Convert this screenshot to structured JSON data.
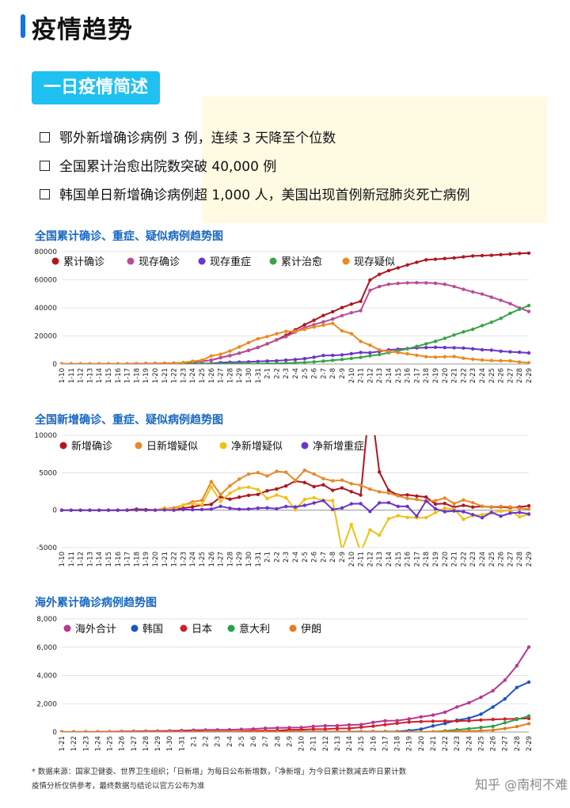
{
  "page": {
    "title": "疫情趋势",
    "section_tag": "一日疫情简述",
    "bullets": [
      "鄂外新增确诊病例 3 例，连续 3 天降至个位数",
      "全国累计治愈出院数突破 40,000 例",
      "韩国单日新增确诊病例超 1,000 人，美国出现首例新冠肺炎死亡病例"
    ],
    "footnote_line1": "* 数据来源：国家卫健委、世界卫生组织；「日新增」为每日公布新增数，「净新增」为今日累计数减去昨日累计数",
    "footnote_line2": "疫情分析仅供参考，最终数据与结论以官方公布为准",
    "watermark": "知乎 @南柯不难"
  },
  "chart_data": [
    {
      "type": "line",
      "title": "全国累计确诊、重症、疑似病例趋势图",
      "ylim": [
        0,
        80000
      ],
      "yticks": [
        "0",
        "20000",
        "40000",
        "60000",
        "80000"
      ],
      "x": [
        "1-10",
        "1-11",
        "1-12",
        "1-13",
        "1-14",
        "1-15",
        "1-16",
        "1-17",
        "1-18",
        "1-19",
        "1-20",
        "1-21",
        "1-22",
        "1-23",
        "1-24",
        "1-25",
        "1-26",
        "1-27",
        "1-28",
        "1-29",
        "1-30",
        "1-31",
        "2-1",
        "2-2",
        "2-3",
        "2-4",
        "2-5",
        "2-6",
        "2-7",
        "2-8",
        "2-9",
        "2-10",
        "2-11",
        "2-12",
        "2-13",
        "2-14",
        "2-15",
        "2-16",
        "2-17",
        "2-18",
        "2-19",
        "2-20",
        "2-21",
        "2-22",
        "2-23",
        "2-24",
        "2-25",
        "2-26",
        "2-27",
        "2-28",
        "2-29"
      ],
      "legend_position": "top",
      "series": [
        {
          "name": "累计确诊",
          "color": "#b0171f",
          "values": [
            41,
            41,
            41,
            41,
            41,
            41,
            45,
            62,
            198,
            275,
            291,
            440,
            571,
            830,
            1287,
            1975,
            2744,
            4515,
            5974,
            7711,
            9692,
            11791,
            14380,
            17205,
            20438,
            24324,
            28018,
            31161,
            34546,
            37198,
            40171,
            42638,
            44653,
            59804,
            63851,
            66492,
            68500,
            70548,
            72436,
            74185,
            74576,
            75077,
            75550,
            76286,
            76959,
            77209,
            77442,
            77876,
            78263,
            78691,
            78989
          ]
        },
        {
          "name": "现存确诊",
          "color": "#b84d95",
          "values": [
            41,
            41,
            41,
            41,
            41,
            41,
            45,
            62,
            198,
            275,
            291,
            440,
            571,
            830,
            1287,
            1975,
            2744,
            4515,
            5974,
            7711,
            9692,
            11791,
            14380,
            17205,
            19500,
            22800,
            26000,
            28000,
            30000,
            32000,
            34500,
            36500,
            38000,
            52500,
            55200,
            56800,
            57400,
            57800,
            57900,
            57800,
            57500,
            56800,
            55200,
            53200,
            51400,
            49800,
            47600,
            45400,
            43000,
            39900,
            37400
          ]
        },
        {
          "name": "现存重症",
          "color": "#6a35c9",
          "values": [
            0,
            0,
            0,
            0,
            0,
            0,
            0,
            0,
            35,
            51,
            63,
            95,
            95,
            177,
            237,
            324,
            461,
            976,
            1239,
            1370,
            1527,
            1795,
            2110,
            2296,
            2788,
            3219,
            3859,
            4821,
            6101,
            6188,
            6484,
            7333,
            8204,
            8030,
            9000,
            10000,
            10500,
            11000,
            11500,
            11700,
            11900,
            11700,
            11600,
            11400,
            10800,
            10200,
            9900,
            9100,
            8700,
            8400,
            7900
          ]
        },
        {
          "name": "累计治愈",
          "color": "#3aa346",
          "values": [
            0,
            0,
            0,
            0,
            0,
            0,
            0,
            0,
            0,
            0,
            0,
            0,
            28,
            34,
            38,
            49,
            51,
            60,
            103,
            124,
            171,
            243,
            328,
            475,
            632,
            892,
            1153,
            1540,
            2050,
            2649,
            3281,
            3996,
            4740,
            5911,
            6723,
            8096,
            9419,
            10844,
            12552,
            14376,
            16155,
            18264,
            20659,
            22888,
            24734,
            27323,
            29745,
            32495,
            36117,
            39002,
            41625
          ]
        },
        {
          "name": "现存疑似",
          "color": "#eb8a1e",
          "values": [
            0,
            0,
            0,
            0,
            0,
            0,
            0,
            0,
            0,
            0,
            0,
            300,
            393,
            1072,
            1965,
            2684,
            5794,
            6973,
            9239,
            12167,
            15238,
            17988,
            19544,
            21558,
            23214,
            23260,
            24702,
            26359,
            27657,
            28942,
            23589,
            21675,
            16067,
            13435,
            10109,
            8969,
            8228,
            7264,
            6242,
            5248,
            4922,
            5206,
            5365,
            4148,
            3434,
            2824,
            2491,
            2358,
            2308,
            1418,
            851
          ]
        }
      ]
    },
    {
      "type": "line",
      "title": "全国新增确诊、重症、疑似病例趋势图",
      "ylim": [
        -5000,
        10000
      ],
      "yticks": [
        "-5000",
        "0",
        "5000",
        "10000"
      ],
      "x": [
        "1-10",
        "1-11",
        "1-12",
        "1-13",
        "1-14",
        "1-15",
        "1-16",
        "1-17",
        "1-18",
        "1-19",
        "1-20",
        "1-21",
        "1-22",
        "1-23",
        "1-24",
        "1-25",
        "1-26",
        "1-27",
        "1-28",
        "1-29",
        "1-30",
        "1-31",
        "2-1",
        "2-2",
        "2-3",
        "2-4",
        "2-5",
        "2-6",
        "2-7",
        "2-8",
        "2-9",
        "2-10",
        "2-11",
        "2-12",
        "2-13",
        "2-14",
        "2-15",
        "2-16",
        "2-17",
        "2-18",
        "2-19",
        "2-20",
        "2-21",
        "2-22",
        "2-23",
        "2-24",
        "2-25",
        "2-26",
        "2-27",
        "2-28",
        "2-29"
      ],
      "legend_position": "top",
      "series": [
        {
          "name": "新增确诊",
          "color": "#b0171f",
          "values": [
            0,
            0,
            0,
            0,
            0,
            0,
            4,
            17,
            136,
            77,
            16,
            149,
            131,
            259,
            444,
            688,
            769,
            1771,
            1459,
            1737,
            1982,
            2102,
            2590,
            2829,
            3235,
            3887,
            3694,
            3143,
            3385,
            2652,
            2973,
            2467,
            2015,
            15152,
            5090,
            2641,
            2009,
            2048,
            1886,
            1749,
            820,
            892,
            397,
            648,
            409,
            508,
            406,
            433,
            327,
            427,
            573
          ]
        },
        {
          "name": "日新增疑似",
          "color": "#e8892a",
          "values": [
            0,
            0,
            0,
            0,
            0,
            0,
            0,
            0,
            0,
            0,
            0,
            200,
            300,
            680,
            1118,
            1309,
            3806,
            2077,
            3248,
            4148,
            4812,
            5019,
            4562,
            5173,
            5072,
            3971,
            5328,
            4833,
            4214,
            3916,
            4008,
            3536,
            3342,
            2807,
            2450,
            2277,
            1918,
            1563,
            1432,
            1185,
            1277,
            1614,
            882,
            1361,
            1005,
            530,
            439,
            508,
            452,
            248,
            132
          ]
        },
        {
          "name": "净新增疑似",
          "color": "#f2bf18",
          "values": [
            0,
            0,
            0,
            0,
            0,
            0,
            0,
            0,
            0,
            0,
            0,
            300,
            93,
            679,
            893,
            719,
            3110,
            1179,
            2266,
            2928,
            3071,
            2750,
            1556,
            2014,
            1656,
            46,
            1442,
            1657,
            1298,
            1285,
            -5353,
            -1914,
            -5608,
            -2632,
            -3326,
            -1140,
            -741,
            -964,
            -1022,
            -994,
            -326,
            284,
            159,
            -1217,
            -714,
            -610,
            -333,
            -133,
            -50,
            -890,
            -567
          ]
        },
        {
          "name": "净新增重症",
          "color": "#6a35c9",
          "values": [
            0,
            0,
            0,
            0,
            0,
            0,
            0,
            0,
            35,
            16,
            12,
            32,
            0,
            82,
            60,
            87,
            137,
            515,
            263,
            131,
            157,
            268,
            315,
            186,
            492,
            431,
            640,
            962,
            1280,
            87,
            296,
            849,
            871,
            -174,
            970,
            1000,
            500,
            500,
            -800,
            1240,
            200,
            -200,
            -100,
            -200,
            -600,
            -1000,
            -300,
            -800,
            -400,
            -300,
            -500
          ]
        }
      ]
    },
    {
      "type": "line",
      "title": "海外累计确诊病例趋势图",
      "ylim": [
        0,
        8000
      ],
      "yticks": [
        "0",
        "2,000",
        "4,000",
        "6,000",
        "8,000"
      ],
      "x": [
        "1-21",
        "1-22",
        "1-23",
        "1-24",
        "1-25",
        "1-26",
        "1-27",
        "1-28",
        "1-29",
        "1-30",
        "1-31",
        "2-1",
        "2-2",
        "2-3",
        "2-4",
        "2-5",
        "2-6",
        "2-7",
        "2-8",
        "2-9",
        "2-10",
        "2-11",
        "2-12",
        "2-13",
        "2-14",
        "2-15",
        "2-16",
        "2-17",
        "2-18",
        "2-19",
        "2-20",
        "2-21",
        "2-22",
        "2-23",
        "2-24",
        "2-25",
        "2-26",
        "2-27",
        "2-28",
        "2-29"
      ],
      "legend_position": "top",
      "series": [
        {
          "name": "海外合计",
          "color": "#b8388f",
          "values": [
            4,
            6,
            9,
            14,
            23,
            38,
            50,
            62,
            68,
            82,
            106,
            132,
            146,
            153,
            159,
            191,
            216,
            270,
            288,
            307,
            319,
            395,
            441,
            447,
            505,
            526,
            683,
            794,
            804,
            924,
            1073,
            1200,
            1402,
            1769,
            2069,
            2459,
            2918,
            3664,
            4691,
            6009
          ]
        },
        {
          "name": "韩国",
          "color": "#1c55c0",
          "values": [
            1,
            1,
            1,
            2,
            2,
            3,
            4,
            4,
            4,
            4,
            11,
            12,
            15,
            15,
            16,
            18,
            23,
            24,
            24,
            27,
            27,
            28,
            28,
            28,
            28,
            28,
            29,
            30,
            31,
            104,
            204,
            433,
            602,
            833,
            977,
            1261,
            1766,
            2337,
            3150,
            3526
          ]
        },
        {
          "name": "日本",
          "color": "#d0202a",
          "values": [
            1,
            1,
            1,
            1,
            3,
            4,
            4,
            7,
            7,
            11,
            15,
            20,
            20,
            20,
            22,
            45,
            86,
            90,
            96,
            161,
            161,
            203,
            203,
            251,
            259,
            338,
            414,
            520,
            616,
            705,
            739,
            759,
            769,
            777,
            794,
            850,
            891,
            919,
            936,
            961
          ]
        },
        {
          "name": "意大利",
          "color": "#27a34a",
          "values": [
            0,
            0,
            0,
            0,
            0,
            0,
            0,
            0,
            0,
            0,
            2,
            2,
            2,
            2,
            2,
            2,
            2,
            3,
            3,
            3,
            3,
            3,
            3,
            3,
            3,
            3,
            3,
            3,
            3,
            3,
            3,
            20,
            79,
            157,
            229,
            322,
            400,
            650,
            888,
            1128
          ]
        },
        {
          "name": "伊朗",
          "color": "#ef7a1b",
          "values": [
            0,
            0,
            0,
            0,
            0,
            0,
            0,
            0,
            0,
            0,
            0,
            0,
            0,
            0,
            0,
            0,
            0,
            0,
            0,
            0,
            0,
            0,
            0,
            0,
            0,
            0,
            0,
            0,
            0,
            2,
            5,
            18,
            28,
            43,
            61,
            95,
            139,
            245,
            388,
            593
          ]
        }
      ]
    }
  ]
}
